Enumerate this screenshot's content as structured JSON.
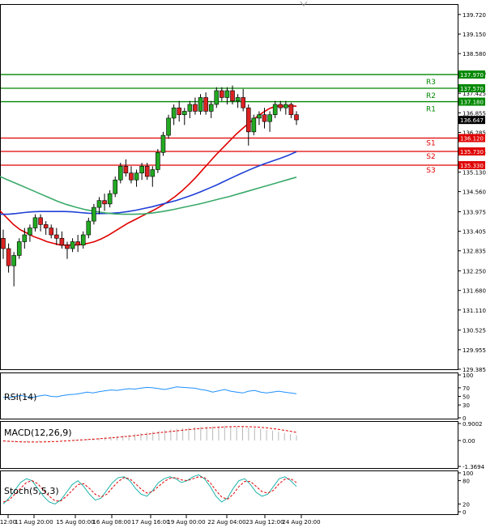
{
  "chart_data": {
    "type": "candlestick",
    "price_axis": {
      "ylim": [
        129.385,
        140.0
      ],
      "tick_labels": [
        "139.720",
        "139.150",
        "138.580",
        "138.010",
        "137.425",
        "136.855",
        "136.285",
        "135.715",
        "135.130",
        "134.560",
        "133.975",
        "133.405",
        "132.835",
        "132.250",
        "131.680",
        "131.110",
        "130.525",
        "129.955",
        "129.385"
      ]
    },
    "current_price": {
      "value": 136.647,
      "label": "136.647"
    },
    "levels": [
      {
        "name": "R3",
        "value": 137.97,
        "label": "137.970",
        "color": "#008800"
      },
      {
        "name": "R2",
        "value": 137.57,
        "label": "137.570",
        "color": "#008800"
      },
      {
        "name": "R1",
        "value": 137.18,
        "label": "137.180",
        "color": "#008800"
      },
      {
        "name": "S1",
        "value": 136.12,
        "label": "136.120",
        "color": "#e00000"
      },
      {
        "name": "S2",
        "value": 135.73,
        "label": "135.730",
        "color": "#e00000"
      },
      {
        "name": "S3",
        "value": 135.33,
        "label": "135.330",
        "color": "#e00000"
      }
    ],
    "x_labels": [
      "12:00",
      "11 Aug 20:00",
      "15 Aug 00:00",
      "16 Aug 08:00",
      "17 Aug 16:00",
      "19 Aug 00:00",
      "22 Aug 04:00",
      "23 Aug 12:00",
      "24 Aug 20:00"
    ],
    "candles": [
      [
        133.2,
        133.45,
        132.6,
        132.9
      ],
      [
        132.9,
        133.05,
        132.2,
        132.4
      ],
      [
        132.4,
        132.8,
        131.8,
        132.7
      ],
      [
        132.7,
        133.2,
        132.6,
        133.1
      ],
      [
        133.1,
        133.5,
        132.9,
        133.3
      ],
      [
        133.3,
        133.6,
        133.1,
        133.5
      ],
      [
        133.5,
        133.9,
        133.4,
        133.8
      ],
      [
        133.8,
        133.9,
        133.4,
        133.6
      ],
      [
        133.6,
        133.7,
        133.3,
        133.5
      ],
      [
        133.5,
        133.6,
        133.2,
        133.3
      ],
      [
        133.3,
        133.5,
        133.0,
        133.2
      ],
      [
        133.2,
        133.4,
        132.9,
        133.0
      ],
      [
        133.0,
        133.1,
        132.6,
        132.9
      ],
      [
        132.9,
        133.2,
        132.8,
        133.1
      ],
      [
        133.1,
        133.3,
        132.8,
        133.0
      ],
      [
        133.0,
        133.4,
        132.9,
        133.3
      ],
      [
        133.3,
        133.8,
        133.2,
        133.7
      ],
      [
        133.7,
        134.2,
        133.6,
        134.1
      ],
      [
        134.1,
        134.4,
        133.9,
        134.3
      ],
      [
        134.3,
        134.5,
        134.0,
        134.2
      ],
      [
        134.2,
        134.6,
        134.1,
        134.5
      ],
      [
        134.5,
        135.0,
        134.4,
        134.9
      ],
      [
        134.9,
        135.4,
        134.8,
        135.3
      ],
      [
        135.3,
        135.5,
        135.0,
        135.1
      ],
      [
        135.1,
        135.3,
        134.8,
        134.9
      ],
      [
        134.9,
        135.2,
        134.7,
        135.1
      ],
      [
        135.1,
        135.4,
        134.9,
        135.3
      ],
      [
        135.3,
        135.4,
        134.9,
        135.0
      ],
      [
        135.0,
        135.3,
        134.7,
        135.2
      ],
      [
        135.2,
        135.8,
        135.1,
        135.7
      ],
      [
        135.7,
        136.3,
        135.6,
        136.2
      ],
      [
        136.2,
        136.8,
        136.1,
        136.7
      ],
      [
        136.7,
        137.1,
        136.5,
        137.0
      ],
      [
        137.0,
        137.2,
        136.6,
        136.8
      ],
      [
        136.8,
        137.0,
        136.5,
        136.9
      ],
      [
        136.9,
        137.2,
        136.7,
        137.1
      ],
      [
        137.1,
        137.3,
        136.8,
        136.9
      ],
      [
        136.9,
        137.4,
        136.8,
        137.3
      ],
      [
        137.3,
        137.45,
        136.8,
        136.9
      ],
      [
        136.9,
        137.2,
        136.7,
        137.1
      ],
      [
        137.1,
        137.6,
        137.0,
        137.5
      ],
      [
        137.5,
        137.6,
        137.2,
        137.3
      ],
      [
        137.3,
        137.6,
        137.1,
        137.5
      ],
      [
        137.5,
        137.65,
        137.1,
        137.2
      ],
      [
        137.2,
        137.4,
        137.0,
        137.3
      ],
      [
        137.3,
        137.55,
        136.9,
        137.0
      ],
      [
        137.0,
        137.1,
        135.9,
        136.3
      ],
      [
        136.3,
        136.8,
        136.2,
        136.7
      ],
      [
        136.7,
        136.9,
        136.5,
        136.8
      ],
      [
        136.8,
        137.0,
        136.4,
        136.6
      ],
      [
        136.6,
        136.9,
        136.3,
        136.8
      ],
      [
        136.8,
        137.2,
        136.7,
        137.1
      ],
      [
        137.1,
        137.2,
        136.9,
        137.0
      ],
      [
        137.0,
        137.2,
        136.8,
        137.1
      ],
      [
        137.1,
        137.15,
        136.7,
        136.8
      ],
      [
        136.8,
        136.9,
        136.5,
        136.65
      ]
    ],
    "moving_averages": [
      {
        "color": "#e00000",
        "values": [
          134.0,
          133.8,
          133.6,
          133.45,
          133.35,
          133.25,
          133.18,
          133.1,
          133.05,
          133.0,
          133.0,
          133.0,
          133.02,
          133.05,
          133.1,
          133.18,
          133.28,
          133.4,
          133.52,
          133.64,
          133.74,
          133.84,
          133.94,
          134.04,
          134.15,
          134.28,
          134.42,
          134.58,
          134.76,
          134.96,
          135.18,
          135.4,
          135.62,
          135.82,
          136.02,
          136.22,
          136.4,
          136.56,
          136.72,
          136.86,
          136.98,
          137.05,
          137.05,
          137.05,
          137.05
        ]
      },
      {
        "color": "#1f3fd6",
        "values": [
          133.9,
          133.9,
          133.92,
          133.95,
          133.97,
          133.98,
          133.98,
          133.98,
          133.98,
          133.97,
          133.95,
          133.93,
          133.92,
          133.92,
          133.93,
          133.95,
          133.98,
          134.02,
          134.07,
          134.12,
          134.18,
          134.24,
          134.3,
          134.38,
          134.46,
          134.55,
          134.65,
          134.75,
          134.86,
          134.97,
          135.08,
          135.18,
          135.28,
          135.37,
          135.45,
          135.53,
          135.62,
          135.72
        ]
      },
      {
        "color": "#3aaa6a",
        "values": [
          135.0,
          134.88,
          134.76,
          134.64,
          134.52,
          134.4,
          134.28,
          134.18,
          134.1,
          134.03,
          133.98,
          133.94,
          133.91,
          133.9,
          133.9,
          133.91,
          133.94,
          133.98,
          134.03,
          134.09,
          134.15,
          134.21,
          134.28,
          134.35,
          134.42,
          134.5,
          134.58,
          134.66,
          134.74,
          134.82,
          134.9,
          134.98
        ]
      }
    ],
    "rsi": {
      "label": "RSI(14)",
      "levels": [
        {
          "value": 100,
          "label": "100"
        },
        {
          "value": 70,
          "label": "70"
        },
        {
          "value": 50,
          "label": "50"
        },
        {
          "value": 30,
          "label": "30"
        },
        {
          "value": 0,
          "label": "0"
        }
      ],
      "values": [
        48,
        47,
        50,
        52,
        49,
        48,
        51,
        53,
        50,
        49,
        52,
        54,
        55,
        57,
        60,
        58,
        61,
        63,
        65,
        64,
        66,
        68,
        67,
        69,
        71,
        70,
        68,
        66,
        69,
        72,
        71,
        70,
        69,
        66,
        64,
        60,
        63,
        66,
        62,
        60,
        58,
        62,
        64,
        60,
        58,
        60,
        62,
        60,
        58,
        56
      ]
    },
    "macd": {
      "label": "MACD(12,26,9)",
      "levels": [
        {
          "value": 0.9002,
          "label": "0.9002"
        },
        {
          "value": 0,
          "label": "0.00"
        },
        {
          "value": -1.3694,
          "label": "-1.3694"
        }
      ],
      "histogram": [
        -0.05,
        -0.08,
        -0.1,
        -0.1,
        -0.09,
        -0.08,
        -0.07,
        -0.05,
        -0.03,
        -0.01,
        0.01,
        0.03,
        0.05,
        0.07,
        0.09,
        0.11,
        0.14,
        0.17,
        0.2,
        0.23,
        0.27,
        0.31,
        0.35,
        0.39,
        0.43,
        0.47,
        0.51,
        0.55,
        0.59,
        0.62,
        0.65,
        0.68,
        0.71,
        0.73,
        0.74,
        0.75,
        0.76,
        0.76,
        0.75,
        0.74,
        0.72,
        0.69,
        0.66,
        0.62,
        0.57,
        0.52,
        0.46,
        0.4,
        0.34,
        0.28
      ],
      "signal": [
        -0.02,
        -0.04,
        -0.06,
        -0.07,
        -0.08,
        -0.08,
        -0.08,
        -0.07,
        -0.06,
        -0.05,
        -0.03,
        -0.01,
        0.01,
        0.03,
        0.05,
        0.07,
        0.09,
        0.12,
        0.14,
        0.17,
        0.2,
        0.23,
        0.26,
        0.3,
        0.33,
        0.37,
        0.41,
        0.44,
        0.48,
        0.51,
        0.55,
        0.58,
        0.61,
        0.64,
        0.66,
        0.68,
        0.7,
        0.72,
        0.73,
        0.74,
        0.74,
        0.73,
        0.72,
        0.7,
        0.67,
        0.63,
        0.59,
        0.54,
        0.49,
        0.43
      ]
    },
    "stoch": {
      "label": "Stoch(5,5,3)",
      "levels": [
        {
          "value": 100,
          "label": "100"
        },
        {
          "value": 80,
          "label": "80"
        },
        {
          "value": 20,
          "label": "20"
        },
        {
          "value": 0,
          "label": "0"
        }
      ],
      "main": [
        20,
        35,
        55,
        75,
        85,
        80,
        60,
        40,
        25,
        20,
        30,
        50,
        70,
        80,
        65,
        45,
        30,
        35,
        55,
        75,
        88,
        90,
        80,
        60,
        45,
        40,
        55,
        75,
        85,
        90,
        85,
        75,
        80,
        90,
        95,
        85,
        65,
        40,
        25,
        35,
        60,
        80,
        85,
        70,
        50,
        40,
        45,
        65,
        85,
        90,
        80,
        65
      ],
      "signal": [
        25,
        30,
        45,
        60,
        75,
        80,
        72,
        55,
        40,
        28,
        28,
        40,
        55,
        70,
        72,
        60,
        45,
        38,
        45,
        62,
        78,
        88,
        85,
        72,
        58,
        48,
        52,
        65,
        78,
        86,
        88,
        82,
        80,
        85,
        90,
        88,
        75,
        55,
        38,
        32,
        45,
        65,
        78,
        78,
        65,
        52,
        48,
        55,
        72,
        84,
        85,
        75
      ]
    }
  }
}
